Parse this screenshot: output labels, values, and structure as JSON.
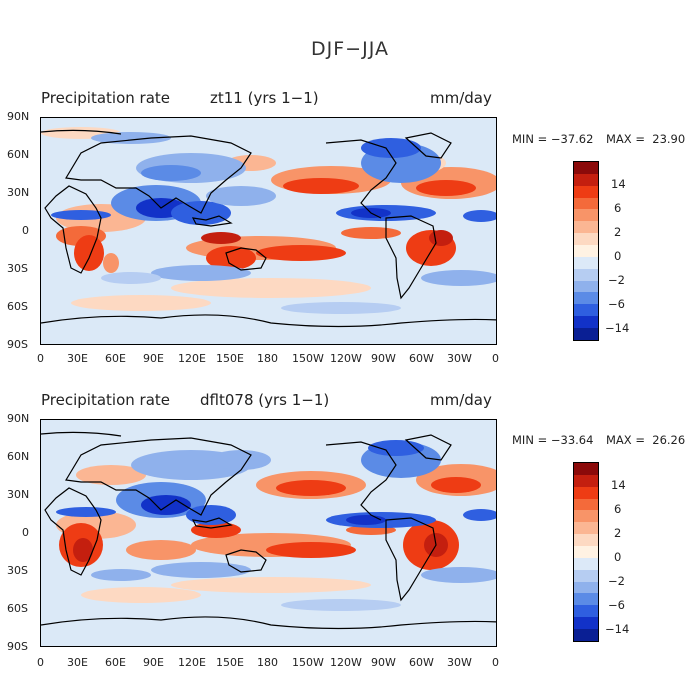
{
  "title": "DJF−JJA",
  "panels": [
    {
      "variable": "Precipitation rate",
      "case": "zt11 (yrs 1−1)",
      "units": "mm/day",
      "min_label": "MIN = −37.62",
      "max_label": "MAX =  23.90"
    },
    {
      "variable": "Precipitation rate",
      "case": "dflt078 (yrs 1−1)",
      "units": "mm/day",
      "min_label": "MIN = −33.64",
      "max_label": "MAX =  26.26"
    }
  ],
  "lat_labels": [
    "90N",
    "60N",
    "30N",
    "0",
    "30S",
    "60S",
    "90S"
  ],
  "lon_labels": [
    "0",
    "30E",
    "60E",
    "90E",
    "120E",
    "150E",
    "180",
    "150W",
    "120W",
    "90W",
    "60W",
    "30W",
    "0"
  ],
  "colorbar": {
    "labels": [
      "14",
      "6",
      "2",
      "0",
      "−2",
      "−6",
      "−14"
    ],
    "colors": [
      "#8b0a0a",
      "#c41f0f",
      "#ee3c14",
      "#f46a3a",
      "#f89468",
      "#fbb693",
      "#fdd9c2",
      "#fff2e3",
      "#dce9f8",
      "#b6cdf2",
      "#8fb1ec",
      "#5b8be6",
      "#2f5fe0",
      "#1232c8",
      "#0a1f94"
    ]
  }
}
